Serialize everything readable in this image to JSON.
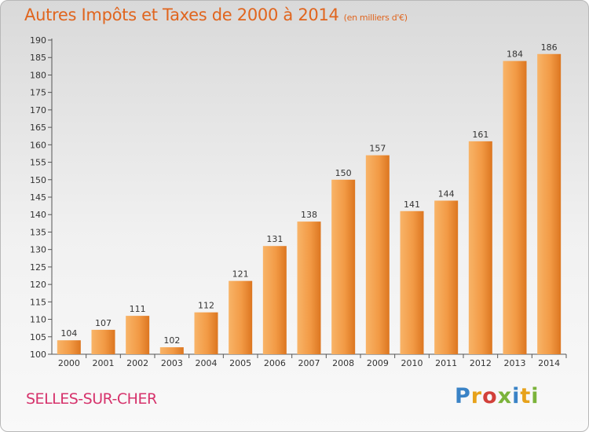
{
  "header": {
    "title": "Autres Impôts et Taxes de 2000 à 2014",
    "subtitle": "(en milliers d'€)"
  },
  "footer": {
    "commune": "SELLES-SUR-CHER",
    "brand": "Proxiti"
  },
  "colors": {
    "title": "#e0651e",
    "commune": "#d6336c",
    "bar_light": "#f6a857",
    "bar_dark": "#e07c23"
  },
  "chart_data": {
    "type": "bar",
    "title": "Autres Impôts et Taxes de 2000 à 2014",
    "subtitle": "(en milliers d'€)",
    "xlabel": "",
    "ylabel": "",
    "categories": [
      "2000",
      "2001",
      "2002",
      "2003",
      "2004",
      "2005",
      "2006",
      "2007",
      "2008",
      "2009",
      "2010",
      "2011",
      "2012",
      "2013",
      "2014"
    ],
    "values": [
      104,
      107,
      111,
      102,
      112,
      121,
      131,
      138,
      150,
      157,
      141,
      144,
      161,
      184,
      186
    ],
    "ylim": [
      100,
      190
    ],
    "yticks": [
      100,
      105,
      110,
      115,
      120,
      125,
      130,
      135,
      140,
      145,
      150,
      155,
      160,
      165,
      170,
      175,
      180,
      185,
      190
    ],
    "grid": false,
    "legend": "none",
    "data_labels": true
  }
}
